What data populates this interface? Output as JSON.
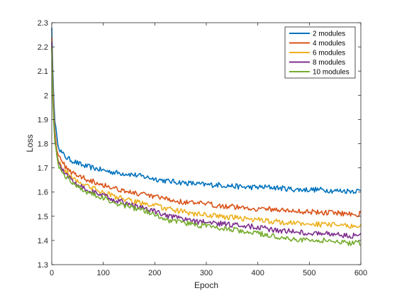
{
  "chart_data": {
    "type": "line",
    "title": "",
    "xlabel": "Epoch",
    "ylabel": "Loss",
    "xlim": [
      0,
      600
    ],
    "ylim": [
      1.3,
      2.3
    ],
    "xticks": [
      0,
      100,
      200,
      300,
      400,
      500,
      600
    ],
    "yticks": [
      1.3,
      1.4,
      1.5,
      1.6,
      1.7,
      1.8,
      1.9,
      2.0,
      2.1,
      2.2,
      2.3
    ],
    "xtick_labels": [
      "0",
      "100",
      "200",
      "300",
      "400",
      "500",
      "600"
    ],
    "ytick_labels": [
      "1.3",
      "1.4",
      "1.5",
      "1.6",
      "1.7",
      "1.8",
      "1.9",
      "2",
      "2.1",
      "2.2",
      "2.3"
    ],
    "grid": false,
    "legend_position": "top-right",
    "series": [
      {
        "name": "2 modules",
        "color": "#0072BD",
        "x": [
          0,
          2,
          5,
          10,
          15,
          20,
          30,
          40,
          50,
          60,
          80,
          100,
          125,
          150,
          175,
          200,
          225,
          250,
          275,
          300,
          325,
          350,
          375,
          400,
          425,
          450,
          475,
          500,
          525,
          550,
          575,
          600
        ],
        "y": [
          2.28,
          2.1,
          1.92,
          1.82,
          1.78,
          1.76,
          1.74,
          1.73,
          1.72,
          1.71,
          1.7,
          1.69,
          1.68,
          1.675,
          1.665,
          1.655,
          1.645,
          1.64,
          1.635,
          1.63,
          1.63,
          1.625,
          1.62,
          1.62,
          1.62,
          1.615,
          1.61,
          1.61,
          1.61,
          1.605,
          1.605,
          1.605
        ]
      },
      {
        "name": "4 modules",
        "color": "#D95319",
        "x": [
          0,
          2,
          5,
          10,
          15,
          20,
          30,
          40,
          50,
          60,
          80,
          100,
          125,
          150,
          175,
          200,
          225,
          250,
          275,
          300,
          325,
          350,
          375,
          400,
          425,
          450,
          475,
          500,
          525,
          550,
          575,
          600
        ],
        "y": [
          2.24,
          2.05,
          1.88,
          1.78,
          1.74,
          1.72,
          1.7,
          1.68,
          1.67,
          1.66,
          1.645,
          1.63,
          1.615,
          1.6,
          1.59,
          1.58,
          1.57,
          1.56,
          1.555,
          1.55,
          1.545,
          1.54,
          1.535,
          1.53,
          1.53,
          1.525,
          1.52,
          1.52,
          1.515,
          1.515,
          1.51,
          1.51
        ]
      },
      {
        "name": "6 modules",
        "color": "#EDB120",
        "x": [
          0,
          2,
          5,
          10,
          15,
          20,
          30,
          40,
          50,
          60,
          80,
          100,
          125,
          150,
          175,
          200,
          225,
          250,
          275,
          300,
          325,
          350,
          375,
          400,
          425,
          450,
          475,
          500,
          525,
          550,
          575,
          600
        ],
        "y": [
          2.2,
          2.02,
          1.86,
          1.76,
          1.72,
          1.7,
          1.68,
          1.66,
          1.645,
          1.635,
          1.615,
          1.6,
          1.58,
          1.565,
          1.555,
          1.545,
          1.53,
          1.52,
          1.51,
          1.505,
          1.5,
          1.495,
          1.49,
          1.485,
          1.48,
          1.475,
          1.47,
          1.47,
          1.465,
          1.465,
          1.46,
          1.46
        ]
      },
      {
        "name": "8 modules",
        "color": "#7E2F8E",
        "x": [
          0,
          2,
          5,
          10,
          15,
          20,
          30,
          40,
          50,
          60,
          80,
          100,
          125,
          150,
          175,
          200,
          225,
          250,
          275,
          300,
          325,
          350,
          375,
          400,
          425,
          450,
          475,
          500,
          525,
          550,
          575,
          600
        ],
        "y": [
          2.22,
          2.0,
          1.85,
          1.75,
          1.71,
          1.69,
          1.67,
          1.65,
          1.635,
          1.62,
          1.6,
          1.585,
          1.565,
          1.55,
          1.535,
          1.52,
          1.5,
          1.49,
          1.48,
          1.475,
          1.47,
          1.465,
          1.46,
          1.455,
          1.445,
          1.44,
          1.435,
          1.43,
          1.43,
          1.425,
          1.42,
          1.42
        ]
      },
      {
        "name": "10 modules",
        "color": "#77AC30",
        "x": [
          0,
          2,
          5,
          10,
          15,
          20,
          30,
          40,
          50,
          60,
          80,
          100,
          125,
          150,
          175,
          200,
          225,
          250,
          275,
          300,
          325,
          350,
          375,
          400,
          425,
          450,
          475,
          500,
          525,
          550,
          575,
          600
        ],
        "y": [
          2.2,
          1.98,
          1.83,
          1.74,
          1.7,
          1.68,
          1.66,
          1.64,
          1.625,
          1.61,
          1.59,
          1.575,
          1.555,
          1.54,
          1.525,
          1.51,
          1.485,
          1.475,
          1.465,
          1.46,
          1.45,
          1.445,
          1.435,
          1.43,
          1.42,
          1.41,
          1.405,
          1.4,
          1.4,
          1.395,
          1.39,
          1.39
        ]
      }
    ]
  }
}
